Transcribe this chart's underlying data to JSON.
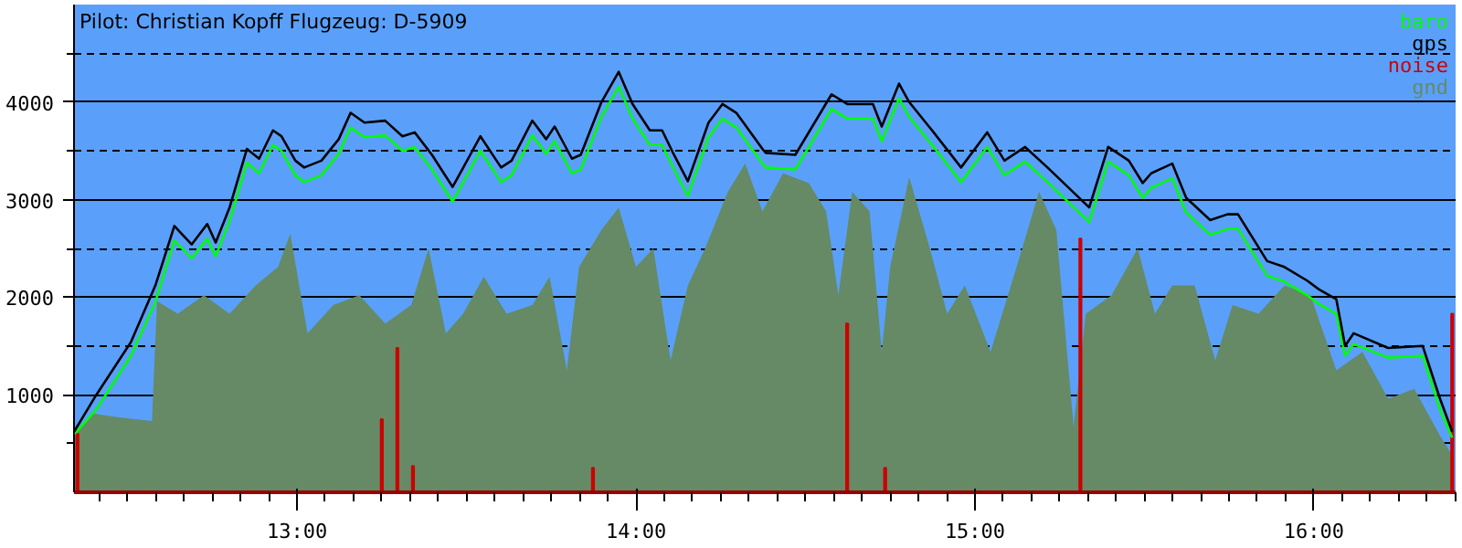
{
  "chart_data": {
    "type": "line",
    "title": "Pilot: Christian Kopff Flugzeug: D-5909",
    "xlim": [
      12.342,
      16.418
    ],
    "ylim": [
      0,
      5000
    ],
    "xticks": [
      {
        "value": 12.417,
        "label": null
      },
      {
        "value": 12.5,
        "label": null
      },
      {
        "value": 12.583,
        "label": null
      },
      {
        "value": 12.667,
        "label": null
      },
      {
        "value": 12.75,
        "label": null
      },
      {
        "value": 12.833,
        "label": null
      },
      {
        "value": 12.917,
        "label": null
      },
      {
        "value": 13,
        "label": "13:00"
      },
      {
        "value": 13.083,
        "label": null
      },
      {
        "value": 13.167,
        "label": null
      },
      {
        "value": 13.25,
        "label": null
      },
      {
        "value": 13.333,
        "label": null
      },
      {
        "value": 13.417,
        "label": null
      },
      {
        "value": 13.5,
        "label": null
      },
      {
        "value": 13.583,
        "label": null
      },
      {
        "value": 13.667,
        "label": null
      },
      {
        "value": 13.75,
        "label": null
      },
      {
        "value": 13.833,
        "label": null
      },
      {
        "value": 13.917,
        "label": null
      },
      {
        "value": 14,
        "label": "14:00"
      },
      {
        "value": 14.083,
        "label": null
      },
      {
        "value": 14.167,
        "label": null
      },
      {
        "value": 14.25,
        "label": null
      },
      {
        "value": 14.333,
        "label": null
      },
      {
        "value": 14.417,
        "label": null
      },
      {
        "value": 14.5,
        "label": null
      },
      {
        "value": 14.583,
        "label": null
      },
      {
        "value": 14.667,
        "label": null
      },
      {
        "value": 14.75,
        "label": null
      },
      {
        "value": 14.833,
        "label": null
      },
      {
        "value": 14.917,
        "label": null
      },
      {
        "value": 15,
        "label": "15:00"
      },
      {
        "value": 15.083,
        "label": null
      },
      {
        "value": 15.167,
        "label": null
      },
      {
        "value": 15.25,
        "label": null
      },
      {
        "value": 15.333,
        "label": null
      },
      {
        "value": 15.417,
        "label": null
      },
      {
        "value": 15.5,
        "label": null
      },
      {
        "value": 15.583,
        "label": null
      },
      {
        "value": 15.667,
        "label": null
      },
      {
        "value": 15.75,
        "label": null
      },
      {
        "value": 15.833,
        "label": null
      },
      {
        "value": 15.917,
        "label": null
      },
      {
        "value": 16,
        "label": "16:00"
      },
      {
        "value": 16.083,
        "label": null
      },
      {
        "value": 16.167,
        "label": null
      },
      {
        "value": 16.25,
        "label": null
      },
      {
        "value": 16.333,
        "label": null
      },
      {
        "value": 16.417,
        "label": null
      }
    ],
    "yticks": [
      {
        "value": 500,
        "label": null
      },
      1000,
      {
        "value": 1500,
        "label": null
      },
      2000,
      {
        "value": 2500,
        "label": null
      },
      3000,
      {
        "value": 3500,
        "label": null
      },
      4000,
      {
        "value": 4500,
        "label": null
      }
    ],
    "grid": "y",
    "legend": "top right",
    "series": [
      {
        "name": "gnd",
        "type": "area",
        "color": "#658a65",
        "x": [
          12.342,
          12.393,
          12.47,
          12.572,
          12.587,
          12.648,
          12.725,
          12.801,
          12.878,
          12.944,
          12.98,
          13.031,
          13.107,
          13.184,
          13.26,
          13.337,
          13.388,
          13.439,
          13.49,
          13.551,
          13.618,
          13.694,
          13.745,
          13.796,
          13.832,
          13.898,
          13.949,
          14.0,
          14.051,
          14.102,
          14.153,
          14.204,
          14.271,
          14.322,
          14.373,
          14.434,
          14.51,
          14.561,
          14.597,
          14.638,
          14.689,
          14.725,
          14.75,
          14.806,
          14.867,
          14.918,
          14.97,
          15.046,
          15.123,
          15.189,
          15.24,
          15.291,
          15.327,
          15.403,
          15.48,
          15.531,
          15.582,
          15.648,
          15.709,
          15.76,
          15.837,
          15.913,
          15.99,
          16.066,
          16.143,
          16.219,
          16.296,
          16.372,
          16.408
        ],
        "values": [
          580,
          810,
          770,
          730,
          1960,
          1830,
          2020,
          1830,
          2120,
          2310,
          2650,
          1630,
          1920,
          2020,
          1730,
          1920,
          2500,
          1630,
          1830,
          2210,
          1830,
          1920,
          2210,
          1250,
          2310,
          2690,
          2920,
          2310,
          2500,
          1350,
          2120,
          2500,
          3080,
          3370,
          2880,
          3270,
          3170,
          2880,
          2020,
          3080,
          2880,
          1440,
          2310,
          3230,
          2500,
          1830,
          2120,
          1440,
          2310,
          3080,
          2690,
          670,
          1830,
          2020,
          2500,
          1830,
          2120,
          2120,
          1350,
          1920,
          1830,
          2120,
          2020,
          1250,
          1440,
          960,
          1060,
          580,
          380
        ]
      },
      {
        "name": "noise",
        "type": "bar",
        "color": "#cc0000",
        "x": [
          12.352,
          13.25,
          13.296,
          13.342,
          13.873,
          14.623,
          14.735,
          15.311,
          16.408
        ],
        "values": [
          600,
          750,
          1480,
          270,
          250,
          1730,
          250,
          2600,
          1830
        ]
      },
      {
        "name": "baro",
        "color": "#00ff00",
        "x": [
          12.342,
          12.408,
          12.51,
          12.582,
          12.638,
          12.689,
          12.735,
          12.76,
          12.801,
          12.852,
          12.888,
          12.929,
          12.954,
          12.995,
          13.021,
          13.072,
          13.123,
          13.158,
          13.199,
          13.26,
          13.311,
          13.347,
          13.398,
          13.459,
          13.541,
          13.602,
          13.633,
          13.694,
          13.735,
          13.76,
          13.811,
          13.837,
          13.898,
          13.949,
          13.99,
          14.041,
          14.077,
          14.112,
          14.153,
          14.214,
          14.255,
          14.296,
          14.373,
          14.383,
          14.47,
          14.577,
          14.623,
          14.699,
          14.725,
          14.776,
          14.806,
          14.878,
          14.959,
          15.036,
          15.087,
          15.148,
          15.214,
          15.337,
          15.393,
          15.454,
          15.495,
          15.52,
          15.582,
          15.623,
          15.694,
          15.745,
          15.776,
          15.862,
          15.913,
          15.98,
          16.015,
          16.066,
          16.092,
          16.117,
          16.219,
          16.321,
          16.372,
          16.408
        ],
        "values": [
          590,
          850,
          1400,
          1950,
          2580,
          2400,
          2600,
          2420,
          2780,
          3380,
          3270,
          3560,
          3500,
          3250,
          3180,
          3250,
          3470,
          3740,
          3640,
          3660,
          3500,
          3540,
          3310,
          2980,
          3500,
          3180,
          3250,
          3660,
          3470,
          3600,
          3270,
          3310,
          3850,
          4160,
          3830,
          3560,
          3560,
          3310,
          3040,
          3640,
          3830,
          3740,
          3370,
          3330,
          3310,
          3930,
          3830,
          3830,
          3600,
          4040,
          3850,
          3540,
          3180,
          3540,
          3250,
          3390,
          3180,
          2770,
          3390,
          3250,
          3020,
          3120,
          3220,
          2870,
          2640,
          2700,
          2700,
          2220,
          2160,
          2020,
          1930,
          1830,
          1400,
          1520,
          1380,
          1400,
          850,
          560
        ]
      },
      {
        "name": "gps",
        "color": "#000000",
        "x": [
          12.342,
          12.408,
          12.51,
          12.582,
          12.638,
          12.689,
          12.735,
          12.76,
          12.801,
          12.852,
          12.888,
          12.929,
          12.954,
          12.995,
          13.021,
          13.072,
          13.123,
          13.158,
          13.199,
          13.26,
          13.311,
          13.347,
          13.398,
          13.459,
          13.541,
          13.602,
          13.633,
          13.694,
          13.735,
          13.76,
          13.811,
          13.837,
          13.898,
          13.949,
          13.99,
          14.041,
          14.077,
          14.112,
          14.153,
          14.214,
          14.255,
          14.296,
          14.373,
          14.383,
          14.47,
          14.577,
          14.623,
          14.699,
          14.725,
          14.776,
          14.806,
          14.878,
          14.959,
          15.036,
          15.087,
          15.148,
          15.214,
          15.337,
          15.393,
          15.454,
          15.495,
          15.52,
          15.582,
          15.623,
          15.694,
          15.745,
          15.776,
          15.862,
          15.913,
          15.98,
          16.015,
          16.066,
          16.092,
          16.117,
          16.219,
          16.321,
          16.372,
          16.408
        ],
        "values": [
          620,
          1000,
          1540,
          2120,
          2730,
          2540,
          2750,
          2560,
          2920,
          3520,
          3420,
          3710,
          3650,
          3400,
          3330,
          3400,
          3620,
          3890,
          3790,
          3810,
          3650,
          3690,
          3460,
          3130,
          3650,
          3330,
          3400,
          3810,
          3620,
          3750,
          3420,
          3460,
          4000,
          4310,
          3980,
          3710,
          3710,
          3460,
          3190,
          3790,
          3980,
          3890,
          3520,
          3480,
          3460,
          4080,
          3980,
          3980,
          3750,
          4190,
          4000,
          3690,
          3330,
          3690,
          3400,
          3540,
          3330,
          2920,
          3540,
          3400,
          3170,
          3270,
          3370,
          3020,
          2790,
          2850,
          2850,
          2370,
          2310,
          2170,
          2080,
          1980,
          1500,
          1630,
          1480,
          1500,
          960,
          620
        ]
      }
    ]
  }
}
